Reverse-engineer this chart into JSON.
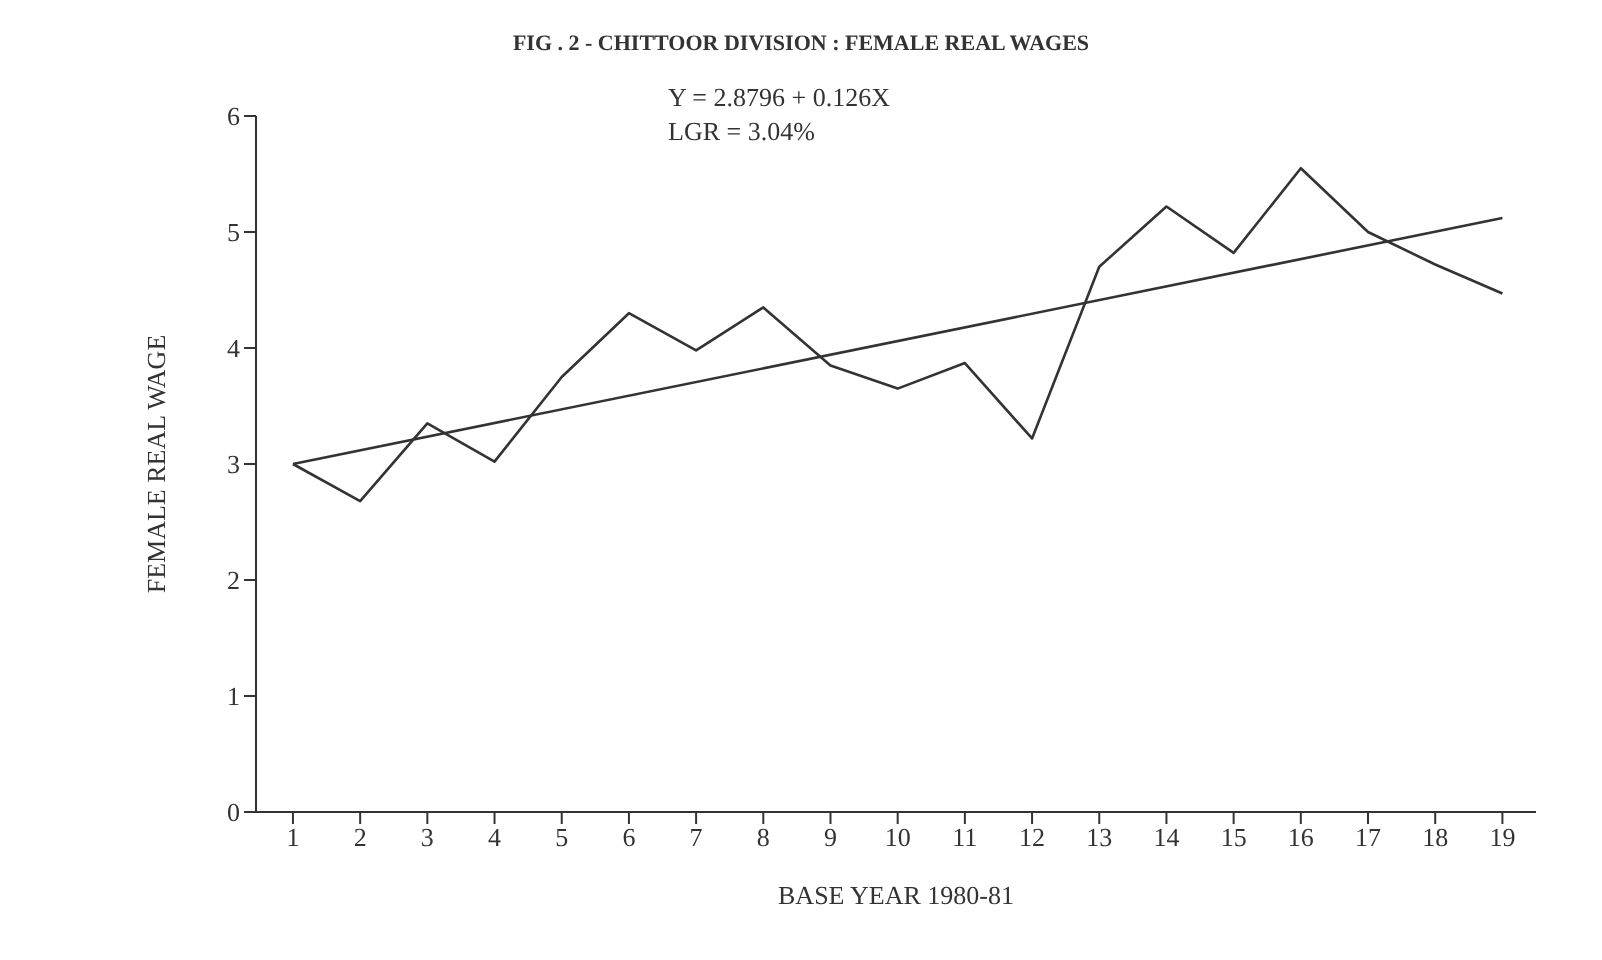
{
  "chart_data": {
    "type": "line",
    "title": "FIG . 2 - CHITTOOR DIVISION : FEMALE REAL WAGES",
    "annotations": [
      "Y = 2.8796 + 0.126X",
      "LGR = 3.04%"
    ],
    "xlabel": "BASE YEAR 1980-81",
    "ylabel": "FEMALE REAL WAGE",
    "x": [
      1,
      2,
      3,
      4,
      5,
      6,
      7,
      8,
      9,
      10,
      11,
      12,
      13,
      14,
      15,
      16,
      17,
      18,
      19
    ],
    "series": [
      {
        "color": "#333333",
        "values": [
          3.0,
          2.68,
          3.35,
          3.02,
          3.75,
          4.3,
          3.98,
          4.35,
          3.85,
          3.65,
          3.87,
          3.22,
          4.7,
          5.22,
          4.82,
          5.55,
          5.0,
          4.72,
          4.47
        ]
      },
      {
        "type": "line",
        "color": "#333333",
        "x": [
          1,
          19
        ],
        "values": [
          3.0,
          5.12
        ]
      }
    ],
    "xlim": [
      0.45,
      19.5
    ],
    "xticks": [
      1,
      2,
      3,
      4,
      5,
      6,
      7,
      8,
      9,
      10,
      11,
      12,
      13,
      14,
      15,
      16,
      17,
      18,
      19
    ],
    "ylim": [
      0,
      6
    ],
    "yticks": [
      0,
      1,
      2,
      3,
      4,
      5,
      6
    ],
    "grid": false,
    "marker": "none",
    "line_style": "solid"
  }
}
